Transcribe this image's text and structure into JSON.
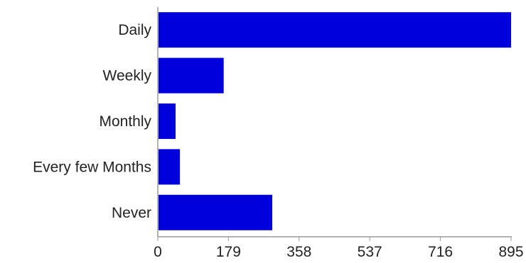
{
  "chart_data": {
    "type": "bar",
    "orientation": "horizontal",
    "categories": [
      "Daily",
      "Weekly",
      "Monthly",
      "Every few Months",
      "Never"
    ],
    "values": [
      895,
      167,
      45,
      56,
      290
    ],
    "xlim": [
      0,
      895
    ],
    "xticks": [
      0,
      179,
      358,
      537,
      716,
      895
    ],
    "tick_labels": [
      "0",
      "179",
      "358",
      "537",
      "716",
      "895"
    ],
    "title": "",
    "xlabel": "",
    "ylabel": "",
    "grid": false,
    "legend": "none",
    "bar_color": "#0000dd"
  }
}
